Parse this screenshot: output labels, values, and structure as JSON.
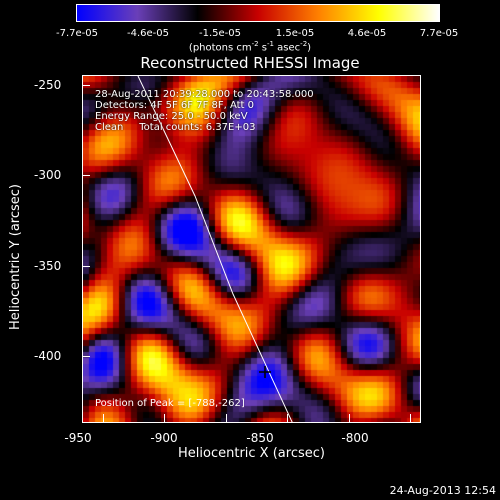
{
  "colorbar": {
    "ticks": [
      "-7.7e-05",
      "-4.6e-05",
      "-1.5e-05",
      "1.5e-05",
      "4.6e-05",
      "7.7e-05"
    ],
    "units_prefix": "(photons cm",
    "units_sup1": "-2",
    "units_mid": " s",
    "units_sup2": "-1",
    "units_mid2": " asec",
    "units_sup3": "-2",
    "units_suffix": ")",
    "colors": [
      "#0000ff",
      "#6a3fb8",
      "#000000",
      "#c80000",
      "#ff8000",
      "#ffff00",
      "#ffffff"
    ]
  },
  "plot": {
    "title": "Reconstructed RHESSI Image",
    "info_lines": [
      "28-Aug-2011 20:39:28.000 to 20:43:58.000",
      "Detectors: 4F 5F 6F 7F 8F, Att 0",
      "Energy Range: 25.0 - 50.0 keV",
      "Clean     Total counts: 6.37E+03"
    ],
    "peak_label": "Position of Peak = [-788,-262]",
    "xlabel": "Heliocentric X (arcsec)",
    "ylabel": "Heliocentric Y (arcsec)",
    "xticks": [
      "-950",
      "-900",
      "-850",
      "-800"
    ],
    "yticks": [
      "-250",
      "-300",
      "-350",
      "-400"
    ]
  },
  "chart_data": {
    "type": "heatmap",
    "title": "Reconstructed RHESSI Image",
    "xlabel": "Heliocentric X (arcsec)",
    "ylabel": "Heliocentric Y (arcsec)",
    "xlim": [
      -955,
      -815
    ],
    "ylim": [
      -435,
      -245
    ],
    "color_range": [
      -7.7e-05,
      7.7e-05
    ],
    "peak": [
      -788,
      -262
    ],
    "grid": false
  },
  "footer": {
    "timestamp": "24-Aug-2013 12:54"
  }
}
